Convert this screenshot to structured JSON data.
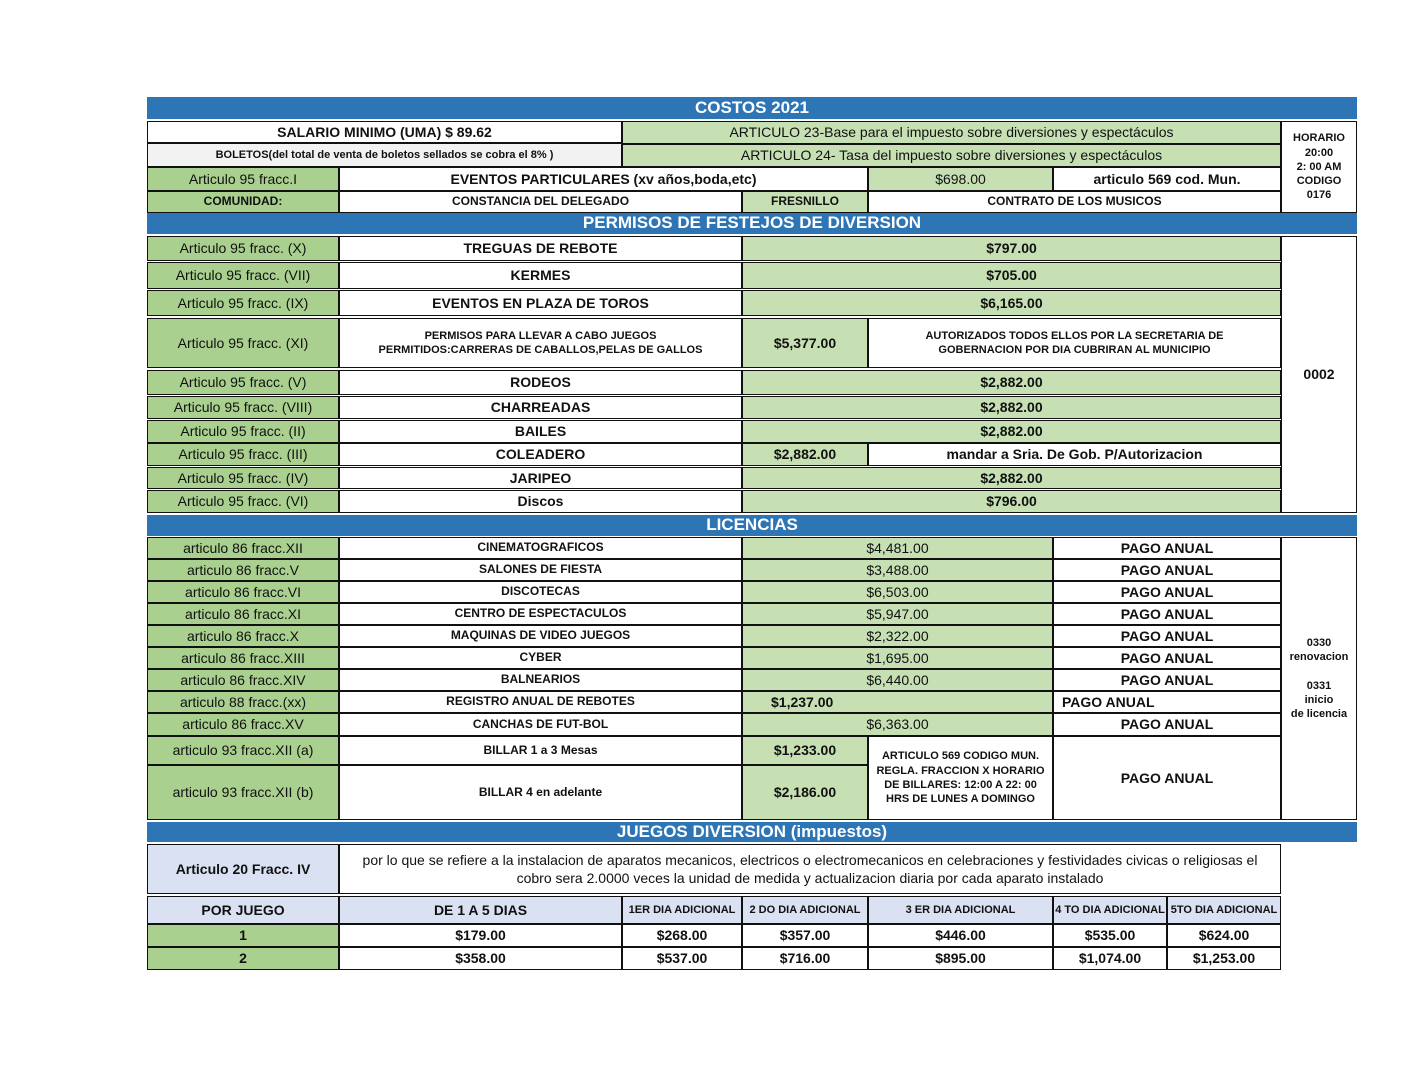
{
  "title": "COSTOS 2021",
  "top": {
    "salario": "SALARIO MINIMO (UMA)     $ 89.62",
    "boletos": "BOLETOS(del total de venta de boletos sellados se cobra el  8% )",
    "art23": "ARTICULO 23-Base para el impuesto sobre diversiones y espectáculos",
    "art24": "ARTICULO 24- Tasa del impuesto sobre diversiones y espectáculos",
    "horario": [
      "HORARIO",
      "20:00",
      "2: 00 AM",
      "CODIGO",
      "0176"
    ],
    "art95": "Articulo 95  fracc.I",
    "eventos": "EVENTOS PARTICULARES (xv años,boda,etc)",
    "eventos_price": "$698.00",
    "art569": "articulo 569 cod. Mun.",
    "comunidad": "COMUNIDAD:",
    "constancia": "CONSTANCIA DEL DELEGADO",
    "fresnillo": "FRESNILLO",
    "contrato": "CONTRATO DE LOS MUSICOS"
  },
  "permisos": {
    "header": "PERMISOS DE FESTEJOS DE DIVERSION",
    "codigo": "0002",
    "rows": [
      {
        "art": "Articulo 95 fracc.   (X)",
        "name": "TREGUAS DE REBOTE",
        "price": "$797.00"
      },
      {
        "art": "Articulo 95 fracc.   (VII)",
        "name": "KERMES",
        "price": "$705.00"
      },
      {
        "art": "Articulo 95 fracc.   (IX)",
        "name": "EVENTOS EN PLAZA DE TOROS",
        "price": "$6,165.00"
      },
      {
        "art": "Articulo 95 fracc.   (XI)",
        "name": [
          "PERMISOS PARA LLEVAR A CABO JUEGOS",
          "PERMITIDOS:CARRERAS DE CABALLOS,PELAS DE GALLOS"
        ],
        "price": "$5,377.00",
        "note": [
          "AUTORIZADOS TODOS ELLOS POR LA SECRETARIA DE",
          "GOBERNACION POR DIA CUBRIRAN AL MUNICIPIO"
        ]
      },
      {
        "art": "Articulo 95 fracc.   (V)",
        "name": "RODEOS",
        "price": "$2,882.00"
      },
      {
        "art": "Articulo 95 fracc.   (VIII)",
        "name": "CHARREADAS",
        "price": "$2,882.00"
      },
      {
        "art": "Articulo 95 fracc.   (II)",
        "name": "BAILES",
        "price": "$2,882.00"
      },
      {
        "art": "Articulo 95 fracc.   (III)",
        "name": "COLEADERO",
        "price": "$2,882.00",
        "note": "mandar a Sria. De Gob. P/Autorizacion"
      },
      {
        "art": "Articulo 95  fracc. (IV)",
        "name": "JARIPEO",
        "price": "$2,882.00"
      },
      {
        "art": "Articulo 95 fracc.  (VI)",
        "name": "Discos",
        "price": "$796.00"
      }
    ]
  },
  "licencias": {
    "header": "LICENCIAS",
    "codigo": [
      "0330",
      "renovacion",
      "",
      "0331",
      "inicio",
      "de licencia"
    ],
    "rows": [
      {
        "art": "articulo 86  fracc.XII",
        "name": "CINEMATOGRAFICOS",
        "price": "$4,481.00",
        "pay": "PAGO ANUAL"
      },
      {
        "art": "articulo 86  fracc.V",
        "name": "SALONES DE FIESTA",
        "price": "$3,488.00",
        "pay": "PAGO ANUAL"
      },
      {
        "art": "articulo 86  fracc.VI",
        "name": "DISCOTECAS",
        "price": "$6,503.00",
        "pay": "PAGO ANUAL"
      },
      {
        "art": "articulo 86  fracc.XI",
        "name": "CENTRO DE ESPECTACULOS",
        "price": "$5,947.00",
        "pay": "PAGO ANUAL"
      },
      {
        "art": "articulo 86  fracc.X",
        "name": "MAQUINAS DE VIDEO JUEGOS",
        "price": "$2,322.00",
        "pay": "PAGO ANUAL"
      },
      {
        "art": "articulo 86  fracc.XIII",
        "name": "CYBER",
        "price": "$1,695.00",
        "pay": "PAGO ANUAL"
      },
      {
        "art": "articulo 86  fracc.XIV",
        "name": "BALNEARIOS",
        "price": "$6,440.00",
        "pay": "PAGO ANUAL"
      },
      {
        "art": "articulo  88 fracc.(xx)",
        "name": "REGISTRO ANUAL DE REBOTES",
        "price": "$1,237.00",
        "pay": "PAGO ANUAL"
      },
      {
        "art": "articulo 86  fracc.XV",
        "name": "CANCHAS DE FUT-BOL",
        "price": "$6,363.00",
        "pay": "PAGO ANUAL"
      }
    ],
    "billar": [
      {
        "art": "articulo 93 fracc.XII (a)",
        "name": "BILLAR 1 a 3 Mesas",
        "price": "$1,233.00"
      },
      {
        "art": "articulo  93 fracc.XII (b)",
        "name": "BILLAR   4 en adelante",
        "price": "$2,186.00"
      }
    ],
    "billar_note": [
      "ARTICULO 569 CODIGO MUN.",
      "REGLA. FRACCION X HORARIO",
      "DE BILLARES: 12:00 A 22: 00",
      "HRS DE LUNES A DOMINGO"
    ],
    "billar_pay": "PAGO ANUAL"
  },
  "juegos": {
    "header": "JUEGOS DIVERSION (impuestos)",
    "art": "Articulo 20 Fracc. IV",
    "desc": "por lo que se refiere a la instalacion de aparatos mecanicos, electricos o electromecanicos en celebraciones y festividades civicas o religiosas el cobro sera 2.0000 veces la unidad de medida y actualizacion diaria por cada aparato instalado",
    "columns": [
      "POR JUEGO",
      "DE 1 A 5 DIAS",
      "1ER DIA ADICIONAL",
      "2 DO DIA ADICIONAL",
      "3 ER DIA ADICIONAL",
      "4 TO DIA ADICIONAL",
      "5TO DIA ADICIONAL"
    ],
    "rows": [
      [
        "1",
        "$179.00",
        "$268.00",
        "$357.00",
        "$446.00",
        "$535.00",
        "$624.00"
      ],
      [
        "2",
        "$358.00",
        "$537.00",
        "$716.00",
        "$895.00",
        "$1,074.00",
        "$1,253.00"
      ]
    ]
  }
}
